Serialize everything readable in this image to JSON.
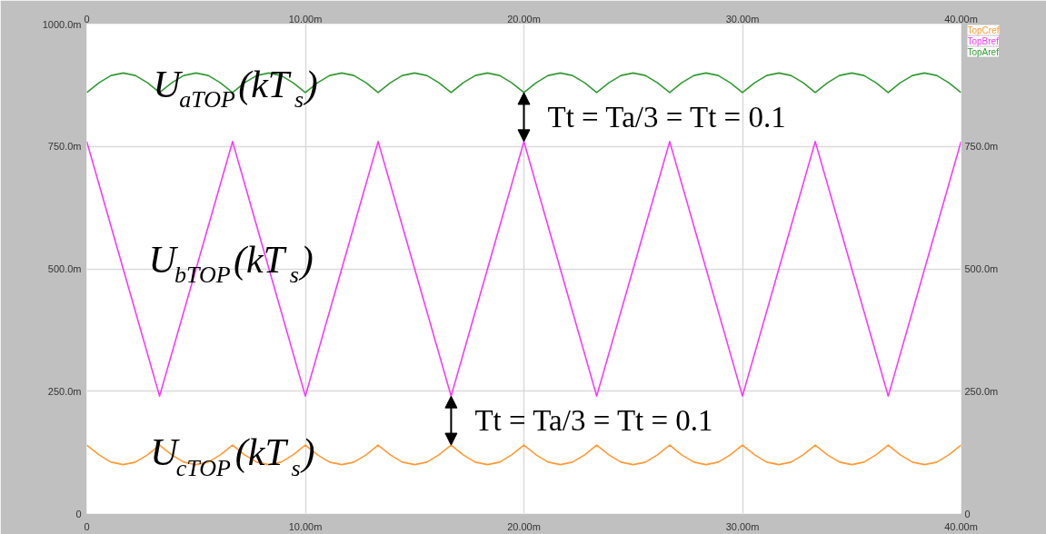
{
  "chart_data": {
    "type": "line",
    "x": [
      0,
      0.56,
      1.11,
      1.67,
      2.22,
      2.78,
      3.33,
      3.89,
      4.44,
      5,
      5.56,
      6.11,
      6.67,
      7.22,
      7.78,
      8.33,
      8.89,
      9.44,
      10,
      10.56,
      11.11,
      11.67,
      12.22,
      12.78,
      13.33,
      13.89,
      14.44,
      15,
      15.56,
      16.11,
      16.67,
      17.22,
      17.78,
      18.33,
      18.89,
      19.44,
      20,
      20.56,
      21.11,
      21.67,
      22.22,
      22.78,
      23.33,
      23.89,
      24.44,
      25,
      25.56,
      26.11,
      26.67,
      27.22,
      27.78,
      28.33,
      28.89,
      29.44,
      30,
      30.56,
      31.11,
      31.67,
      32.22,
      32.78,
      33.33,
      33.89,
      34.44,
      35,
      35.56,
      36.11,
      36.67,
      37.22,
      37.78,
      38.33,
      38.89,
      39.44,
      40
    ],
    "xlim": [
      0,
      40
    ],
    "xticks": [
      0,
      {
        "value": 10,
        "label": "10.00m"
      },
      {
        "value": 20,
        "label": "20.00m"
      },
      {
        "value": 30,
        "label": "30.00m"
      },
      {
        "value": 40,
        "label": "40.00m"
      }
    ],
    "x2lim": [
      0,
      40
    ],
    "x2ticks": [
      0,
      {
        "value": 10,
        "label": "10.00m"
      },
      {
        "value": 20,
        "label": "20.00m"
      },
      {
        "value": 30,
        "label": "30.00m"
      },
      {
        "value": 40,
        "label": "40.00m"
      }
    ],
    "ylim": [
      0,
      1000
    ],
    "yticks": [
      0,
      {
        "value": 250,
        "label": "250.0m"
      },
      {
        "value": 500,
        "label": "500.0m"
      },
      {
        "value": 750,
        "label": "750.0m"
      },
      {
        "value": 1000,
        "label": "1000.0m"
      }
    ],
    "y2lim": [
      0,
      1000
    ],
    "y2ticks": [
      0,
      {
        "value": 250,
        "label": "250.0m"
      },
      {
        "value": 500,
        "label": "500.0m"
      },
      {
        "value": 750,
        "label": "750.0m"
      }
    ],
    "grid": true,
    "series": [
      {
        "name": "TopCref",
        "color": "#ff9933",
        "values": [
          140,
          120,
          105,
          100,
          105,
          120,
          140,
          120,
          105,
          100,
          105,
          120,
          140,
          120,
          105,
          100,
          105,
          120,
          140,
          120,
          105,
          100,
          105,
          120,
          140,
          120,
          105,
          100,
          105,
          120,
          140,
          120,
          105,
          100,
          105,
          120,
          140,
          120,
          105,
          100,
          105,
          120,
          140,
          120,
          105,
          100,
          105,
          120,
          140,
          120,
          105,
          100,
          105,
          120,
          140,
          120,
          105,
          100,
          105,
          120,
          140,
          120,
          105,
          100,
          105,
          120,
          140,
          120,
          105,
          100,
          105,
          120,
          140
        ]
      },
      {
        "name": "TopBref",
        "color": "#ff33ff",
        "x": [
          0,
          3.33,
          6.67,
          10,
          13.33,
          16.67,
          20,
          23.33,
          26.67,
          30,
          33.33,
          36.67,
          40
        ],
        "values": [
          760,
          240,
          760,
          240,
          760,
          240,
          760,
          240,
          760,
          240,
          760,
          240,
          760
        ]
      },
      {
        "name": "TopAref",
        "color": "#339933",
        "values": [
          860,
          880,
          895,
          900,
          895,
          880,
          860,
          880,
          895,
          900,
          895,
          880,
          860,
          880,
          895,
          900,
          895,
          880,
          860,
          880,
          895,
          900,
          895,
          880,
          860,
          880,
          895,
          900,
          895,
          880,
          860,
          880,
          895,
          900,
          895,
          880,
          860,
          880,
          895,
          900,
          895,
          880,
          860,
          880,
          895,
          900,
          895,
          880,
          860,
          880,
          895,
          900,
          895,
          880,
          860,
          880,
          895,
          900,
          895,
          880,
          860,
          880,
          895,
          900,
          895,
          880,
          860,
          880,
          895,
          900,
          895,
          880,
          860
        ]
      }
    ],
    "annotations": [
      {
        "text": "U$_{aTOP}$(kT$_{s}$)",
        "x": 3.04,
        "y": 877
      },
      "U$_{bTOP}$(kT$_{s}$)",
      {
        "text": "U$_{cTOP}$(kT$_{s}$)",
        "x": 2.9,
        "y": 125
      },
      {
        "text": "Tt = Ta/3 = Tt = 0.1",
        "x": 20,
        "y": 860
      },
      {
        "text": "Tt = Ta/3 = Tt = 0.1",
        "x": 16.67,
        "y": 240
      }
    ]
  }
}
